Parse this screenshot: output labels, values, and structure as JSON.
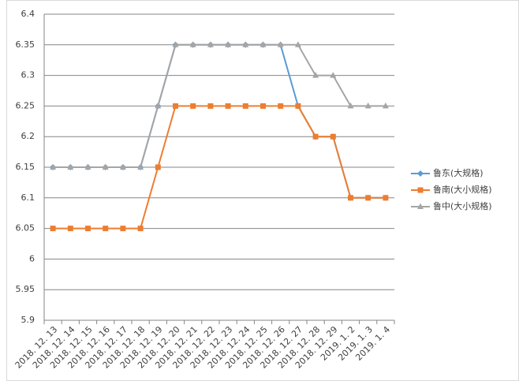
{
  "chart_data": {
    "type": "line",
    "categories": [
      "2018. 12. 13",
      "2018. 12. 14",
      "2018. 12. 15",
      "2018. 12. 16",
      "2018. 12. 17",
      "2018. 12. 18",
      "2018. 12. 19",
      "2018. 12. 20",
      "2018. 12. 21",
      "2018. 12. 22",
      "2018. 12. 23",
      "2018. 12. 24",
      "2018. 12. 25",
      "2018. 12. 26",
      "2018. 12. 27",
      "2018. 12. 28",
      "2018. 12. 29",
      "2019. 1. 2",
      "2019. 1. 3",
      "2019. 1. 4"
    ],
    "series": [
      {
        "name": "鲁东(大规格)",
        "color": "#5b9bd5",
        "marker": "diamond",
        "values": [
          6.15,
          6.15,
          6.15,
          6.15,
          6.15,
          6.15,
          6.25,
          6.35,
          6.35,
          6.35,
          6.35,
          6.35,
          6.35,
          6.35,
          6.25,
          6.2,
          6.2,
          6.1,
          6.1,
          6.1
        ]
      },
      {
        "name": "鲁南(大小规格)",
        "color": "#ed7d31",
        "marker": "square",
        "values": [
          6.05,
          6.05,
          6.05,
          6.05,
          6.05,
          6.05,
          6.15,
          6.25,
          6.25,
          6.25,
          6.25,
          6.25,
          6.25,
          6.25,
          6.25,
          6.2,
          6.2,
          6.1,
          6.1,
          6.1
        ]
      },
      {
        "name": "鲁中(大小规格)",
        "color": "#a5a5a5",
        "marker": "triangle",
        "values": [
          6.15,
          6.15,
          6.15,
          6.15,
          6.15,
          6.15,
          6.25,
          6.35,
          6.35,
          6.35,
          6.35,
          6.35,
          6.35,
          6.35,
          6.35,
          6.3,
          6.3,
          6.25,
          6.25,
          6.25
        ]
      }
    ],
    "ylim": [
      5.9,
      6.4
    ],
    "yticks": [
      5.9,
      5.95,
      6,
      6.05,
      6.1,
      6.15,
      6.2,
      6.25,
      6.3,
      6.35,
      6.4
    ],
    "grid": true,
    "legend": "right"
  }
}
